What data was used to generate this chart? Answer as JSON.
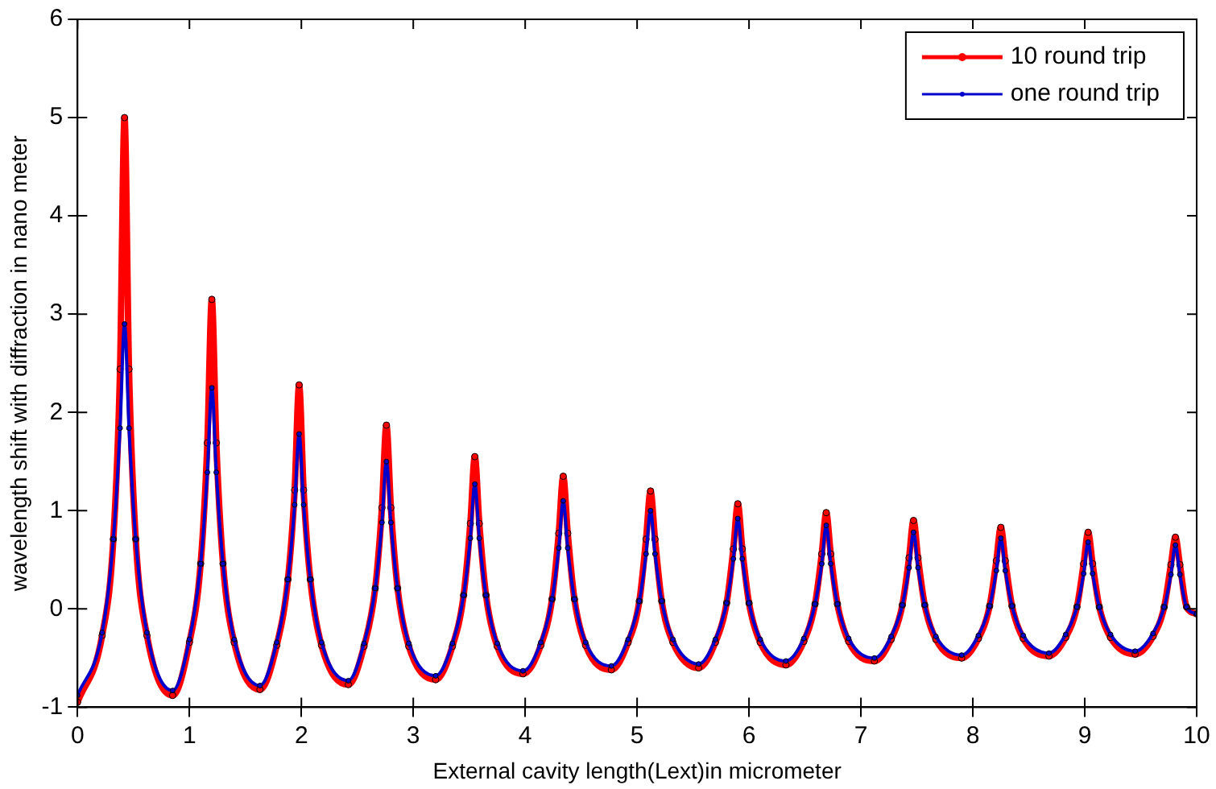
{
  "chart_data": {
    "type": "line",
    "xlabel": "External cavity length(Lext)in micrometer",
    "ylabel": "wavelength shift with diffraction in nano meter",
    "x": [
      0,
      0.22,
      0.32,
      0.38,
      0.42,
      0.46,
      0.52,
      0.62,
      0.85,
      1.0,
      1.1,
      1.16,
      1.2,
      1.24,
      1.3,
      1.4,
      1.63,
      1.78,
      1.88,
      1.94,
      1.98,
      2.02,
      2.08,
      2.18,
      2.42,
      2.56,
      2.66,
      2.72,
      2.76,
      2.8,
      2.86,
      2.96,
      3.2,
      3.35,
      3.45,
      3.51,
      3.55,
      3.59,
      3.65,
      3.75,
      3.98,
      4.14,
      4.24,
      4.3,
      4.34,
      4.38,
      4.44,
      4.54,
      4.77,
      4.92,
      5.02,
      5.08,
      5.12,
      5.16,
      5.22,
      5.32,
      5.55,
      5.7,
      5.8,
      5.86,
      5.9,
      5.94,
      6.0,
      6.1,
      6.33,
      6.49,
      6.59,
      6.65,
      6.69,
      6.73,
      6.79,
      6.89,
      7.12,
      7.27,
      7.37,
      7.43,
      7.47,
      7.51,
      7.57,
      7.67,
      7.9,
      8.05,
      8.15,
      8.21,
      8.25,
      8.29,
      8.35,
      8.45,
      8.68,
      8.83,
      8.93,
      8.99,
      9.03,
      9.07,
      9.13,
      9.23,
      9.45,
      9.61,
      9.71,
      9.77,
      9.81,
      9.85,
      9.91,
      10
    ],
    "series": [
      {
        "name": "10 round trip",
        "color": "#ff0000",
        "values": [
          -0.95,
          -0.27,
          0.71,
          2.44,
          5.0,
          2.44,
          0.71,
          -0.27,
          -0.88,
          -0.34,
          0.46,
          1.69,
          3.15,
          1.69,
          0.46,
          -0.34,
          -0.82,
          -0.37,
          0.3,
          1.21,
          2.28,
          1.21,
          0.3,
          -0.37,
          -0.77,
          -0.38,
          0.21,
          1.03,
          1.87,
          1.03,
          0.21,
          -0.38,
          -0.72,
          -0.38,
          0.14,
          0.87,
          1.55,
          0.87,
          0.14,
          -0.38,
          -0.66,
          -0.37,
          0.1,
          0.77,
          1.35,
          0.77,
          0.1,
          -0.37,
          -0.62,
          -0.34,
          0.08,
          0.71,
          1.2,
          0.71,
          0.08,
          -0.34,
          -0.6,
          -0.34,
          0.06,
          0.61,
          1.07,
          0.61,
          0.06,
          -0.34,
          -0.57,
          -0.33,
          0.05,
          0.56,
          0.98,
          0.56,
          0.05,
          -0.33,
          -0.53,
          -0.31,
          0.04,
          0.52,
          0.9,
          0.52,
          0.04,
          -0.31,
          -0.5,
          -0.3,
          0.03,
          0.49,
          0.83,
          0.49,
          0.03,
          -0.3,
          -0.48,
          -0.29,
          0.02,
          0.46,
          0.78,
          0.46,
          0.02,
          -0.29,
          -0.46,
          -0.28,
          0.02,
          0.45,
          0.73,
          0.45,
          0.02,
          -0.05
        ]
      },
      {
        "name": "one round trip",
        "color": "#0000cc",
        "values": [
          -0.88,
          -0.24,
          0.71,
          1.84,
          2.9,
          1.84,
          0.71,
          -0.24,
          -0.83,
          -0.31,
          0.46,
          1.39,
          2.25,
          1.39,
          0.46,
          -0.31,
          -0.78,
          -0.34,
          0.3,
          1.06,
          1.78,
          1.06,
          0.3,
          -0.34,
          -0.73,
          -0.35,
          0.21,
          0.88,
          1.5,
          0.88,
          0.21,
          -0.35,
          -0.68,
          -0.35,
          0.14,
          0.72,
          1.27,
          0.72,
          0.14,
          -0.35,
          -0.63,
          -0.34,
          0.1,
          0.62,
          1.1,
          0.62,
          0.1,
          -0.34,
          -0.58,
          -0.31,
          0.08,
          0.56,
          1.0,
          0.56,
          0.08,
          -0.31,
          -0.56,
          -0.31,
          0.06,
          0.51,
          0.92,
          0.51,
          0.06,
          -0.31,
          -0.53,
          -0.3,
          0.05,
          0.46,
          0.85,
          0.46,
          0.05,
          -0.3,
          -0.5,
          -0.28,
          0.04,
          0.42,
          0.78,
          0.42,
          0.04,
          -0.28,
          -0.47,
          -0.27,
          0.03,
          0.39,
          0.72,
          0.39,
          0.03,
          -0.27,
          -0.45,
          -0.26,
          0.02,
          0.36,
          0.68,
          0.36,
          0.02,
          -0.26,
          -0.43,
          -0.25,
          0.02,
          0.35,
          0.65,
          0.35,
          0.02,
          -0.05
        ]
      }
    ],
    "xlim": [
      0,
      10
    ],
    "xticks": [
      0,
      1,
      2,
      3,
      4,
      5,
      6,
      7,
      8,
      9,
      10
    ],
    "ylim": [
      -1,
      6
    ],
    "yticks": [
      -1,
      0,
      1,
      2,
      3,
      4,
      5,
      6
    ],
    "grid": false,
    "legend": "top right",
    "marker": "circle",
    "line_style": "solid"
  }
}
